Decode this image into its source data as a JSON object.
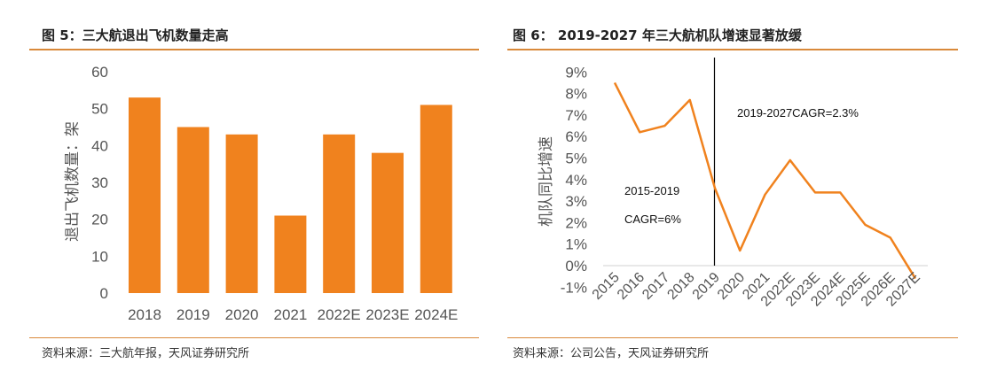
{
  "left": {
    "title": "图 5：三大航退出飞机数量走高",
    "source": "资料来源：三大航年报，天风证券研究所"
  },
  "right": {
    "title": "图 6：  2019-2027 年三大航机队增速显著放缓",
    "source": "资料来源：公司公告，天风证券研究所"
  },
  "chart_data": [
    {
      "type": "bar",
      "title": "图 5：三大航退出飞机数量走高",
      "categories": [
        "2018",
        "2019",
        "2020",
        "2021",
        "2022E",
        "2023E",
        "2024E"
      ],
      "values": [
        53,
        45,
        43,
        21,
        43,
        38,
        51
      ],
      "xlabel": "",
      "ylabel": "退出飞机数量：架",
      "ylim": [
        0,
        60
      ],
      "yticks": [
        "0",
        "10",
        "20",
        "30",
        "40",
        "50",
        "60"
      ],
      "color": "#f0821e",
      "grid": false
    },
    {
      "type": "line",
      "title": "图 6：  2019-2027 年三大航机队增速显著放缓",
      "categories": [
        "2015",
        "2016",
        "2017",
        "2018",
        "2019",
        "2020",
        "2021",
        "2022E",
        "2023E",
        "2024E",
        "2025E",
        "2026E",
        "2027E"
      ],
      "values": [
        8.5,
        6.2,
        6.5,
        7.7,
        3.6,
        0.7,
        3.3,
        4.9,
        3.4,
        3.4,
        1.9,
        1.3,
        -0.6
      ],
      "xlabel": "",
      "ylabel": "机队同比增速",
      "ylim": [
        -1,
        9
      ],
      "yticks": [
        "-1%",
        "0%",
        "1%",
        "2%",
        "3%",
        "4%",
        "5%",
        "6%",
        "7%",
        "8%",
        "9%"
      ],
      "annotations": [
        "2019-2027CAGR=2.3%",
        "2015-2019",
        "CAGR=6%"
      ],
      "divider_at": "2019",
      "color": "#f0821e",
      "grid": false
    }
  ]
}
